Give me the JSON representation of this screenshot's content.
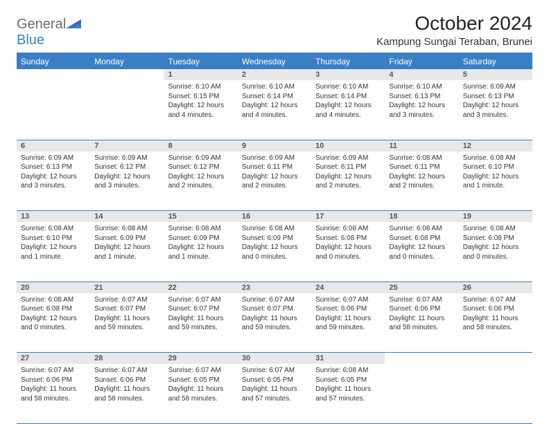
{
  "logo": {
    "top": "General",
    "bottom": "Blue"
  },
  "title": "October 2024",
  "subtitle": "Kampung Sungai Teraban, Brunei",
  "colors": {
    "header_bg": "#3a7fc4",
    "header_text": "#ffffff",
    "daynum_bg": "#e8e8e8",
    "border": "#3a7fc4",
    "logo_gray": "#6b6b6b",
    "logo_blue": "#3a7fc4"
  },
  "day_headers": [
    "Sunday",
    "Monday",
    "Tuesday",
    "Wednesday",
    "Thursday",
    "Friday",
    "Saturday"
  ],
  "weeks": [
    [
      null,
      null,
      {
        "n": "1",
        "sr": "6:10 AM",
        "ss": "6:15 PM",
        "dl": "12 hours and 4 minutes."
      },
      {
        "n": "2",
        "sr": "6:10 AM",
        "ss": "6:14 PM",
        "dl": "12 hours and 4 minutes."
      },
      {
        "n": "3",
        "sr": "6:10 AM",
        "ss": "6:14 PM",
        "dl": "12 hours and 4 minutes."
      },
      {
        "n": "4",
        "sr": "6:10 AM",
        "ss": "6:13 PM",
        "dl": "12 hours and 3 minutes."
      },
      {
        "n": "5",
        "sr": "6:09 AM",
        "ss": "6:13 PM",
        "dl": "12 hours and 3 minutes."
      }
    ],
    [
      {
        "n": "6",
        "sr": "6:09 AM",
        "ss": "6:13 PM",
        "dl": "12 hours and 3 minutes."
      },
      {
        "n": "7",
        "sr": "6:09 AM",
        "ss": "6:12 PM",
        "dl": "12 hours and 3 minutes."
      },
      {
        "n": "8",
        "sr": "6:09 AM",
        "ss": "6:12 PM",
        "dl": "12 hours and 2 minutes."
      },
      {
        "n": "9",
        "sr": "6:09 AM",
        "ss": "6:11 PM",
        "dl": "12 hours and 2 minutes."
      },
      {
        "n": "10",
        "sr": "6:09 AM",
        "ss": "6:11 PM",
        "dl": "12 hours and 2 minutes."
      },
      {
        "n": "11",
        "sr": "6:08 AM",
        "ss": "6:11 PM",
        "dl": "12 hours and 2 minutes."
      },
      {
        "n": "12",
        "sr": "6:08 AM",
        "ss": "6:10 PM",
        "dl": "12 hours and 1 minute."
      }
    ],
    [
      {
        "n": "13",
        "sr": "6:08 AM",
        "ss": "6:10 PM",
        "dl": "12 hours and 1 minute."
      },
      {
        "n": "14",
        "sr": "6:08 AM",
        "ss": "6:09 PM",
        "dl": "12 hours and 1 minute."
      },
      {
        "n": "15",
        "sr": "6:08 AM",
        "ss": "6:09 PM",
        "dl": "12 hours and 1 minute."
      },
      {
        "n": "16",
        "sr": "6:08 AM",
        "ss": "6:09 PM",
        "dl": "12 hours and 0 minutes."
      },
      {
        "n": "17",
        "sr": "6:08 AM",
        "ss": "6:08 PM",
        "dl": "12 hours and 0 minutes."
      },
      {
        "n": "18",
        "sr": "6:08 AM",
        "ss": "6:08 PM",
        "dl": "12 hours and 0 minutes."
      },
      {
        "n": "19",
        "sr": "6:08 AM",
        "ss": "6:08 PM",
        "dl": "12 hours and 0 minutes."
      }
    ],
    [
      {
        "n": "20",
        "sr": "6:08 AM",
        "ss": "6:08 PM",
        "dl": "12 hours and 0 minutes."
      },
      {
        "n": "21",
        "sr": "6:07 AM",
        "ss": "6:07 PM",
        "dl": "11 hours and 59 minutes."
      },
      {
        "n": "22",
        "sr": "6:07 AM",
        "ss": "6:07 PM",
        "dl": "11 hours and 59 minutes."
      },
      {
        "n": "23",
        "sr": "6:07 AM",
        "ss": "6:07 PM",
        "dl": "11 hours and 59 minutes."
      },
      {
        "n": "24",
        "sr": "6:07 AM",
        "ss": "6:06 PM",
        "dl": "11 hours and 59 minutes."
      },
      {
        "n": "25",
        "sr": "6:07 AM",
        "ss": "6:06 PM",
        "dl": "11 hours and 58 minutes."
      },
      {
        "n": "26",
        "sr": "6:07 AM",
        "ss": "6:06 PM",
        "dl": "11 hours and 58 minutes."
      }
    ],
    [
      {
        "n": "27",
        "sr": "6:07 AM",
        "ss": "6:06 PM",
        "dl": "11 hours and 58 minutes."
      },
      {
        "n": "28",
        "sr": "6:07 AM",
        "ss": "6:06 PM",
        "dl": "11 hours and 58 minutes."
      },
      {
        "n": "29",
        "sr": "6:07 AM",
        "ss": "6:05 PM",
        "dl": "11 hours and 58 minutes."
      },
      {
        "n": "30",
        "sr": "6:07 AM",
        "ss": "6:05 PM",
        "dl": "11 hours and 57 minutes."
      },
      {
        "n": "31",
        "sr": "6:08 AM",
        "ss": "6:05 PM",
        "dl": "11 hours and 57 minutes."
      },
      null,
      null
    ]
  ],
  "labels": {
    "sunrise": "Sunrise:",
    "sunset": "Sunset:",
    "daylight": "Daylight:"
  }
}
